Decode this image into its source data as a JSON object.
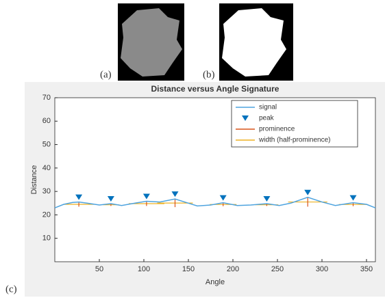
{
  "panel_labels": [
    "(a)",
    "(b)",
    "(c)"
  ],
  "chart_data": {
    "type": "line",
    "title": "Distance versus Angle Signature",
    "x_label": "Angle",
    "y_label": "Distance",
    "xlim": [
      0,
      360
    ],
    "ylim": [
      0,
      70
    ],
    "xticks": [
      50,
      100,
      150,
      200,
      250,
      300,
      350
    ],
    "yticks": [
      10,
      20,
      30,
      40,
      50,
      60,
      70
    ],
    "x": [
      0,
      10,
      20,
      27,
      40,
      50,
      63,
      75,
      90,
      103,
      118,
      135,
      150,
      160,
      175,
      189,
      205,
      220,
      238,
      252,
      265,
      284,
      300,
      315,
      335,
      350,
      360
    ],
    "series": [
      {
        "name": "signal",
        "color": "#4da3df",
        "values": [
          23,
          24.5,
          25.3,
          25.5,
          24.8,
          24.2,
          24.8,
          24,
          25,
          25.8,
          25.5,
          26.8,
          25,
          23.8,
          24.2,
          25.2,
          24,
          24.2,
          24.8,
          24,
          25,
          27.5,
          25.5,
          24,
          25.2,
          24.5,
          23
        ]
      }
    ],
    "peaks": {
      "name": "peak",
      "color": "#0072bd",
      "x": [
        27,
        63,
        103,
        135,
        189,
        238,
        284,
        335
      ],
      "values": [
        25.5,
        24.8,
        25.8,
        26.8,
        25.2,
        24.8,
        27.5,
        25.2
      ],
      "prominence_name": "prominence",
      "prominence_color": "#d95319",
      "prominences": [
        2,
        1,
        2,
        3.5,
        1.5,
        1,
        4,
        1.5
      ],
      "width_name": "width (half-prominence)",
      "width_color": "#edb120",
      "widths": [
        34,
        18,
        40,
        40,
        30,
        26,
        44,
        32
      ]
    }
  }
}
